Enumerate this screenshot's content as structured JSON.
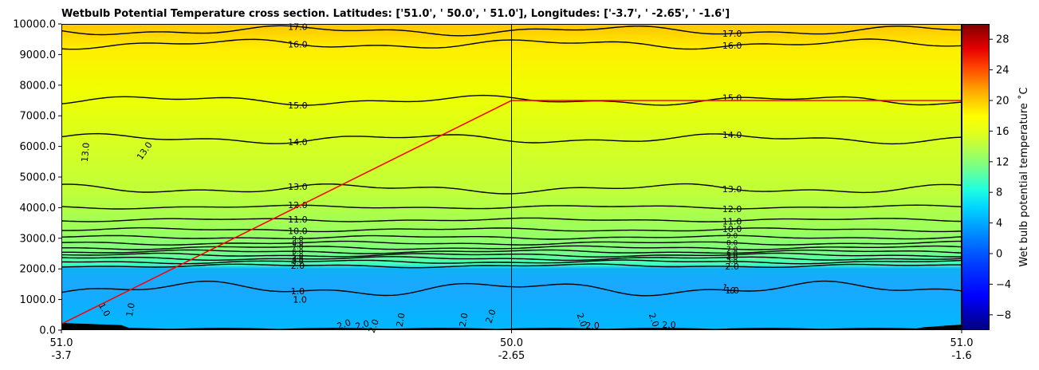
{
  "chart_data": {
    "type": "contour",
    "title": "Wetbulb Potential Temperature cross section. Latitudes: ['51.0', ' 50.0', ' 51.0'], Longitudes: ['-3.7', ' -2.65', ' -1.6']",
    "xlabel": "",
    "ylabel": "",
    "xlim": [
      0,
      2
    ],
    "ylim": [
      0,
      10000
    ],
    "x_ticks": [
      {
        "value": 0,
        "lat": "51.0",
        "lon": "-3.7"
      },
      {
        "value": 1,
        "lat": "50.0",
        "lon": "-2.65"
      },
      {
        "value": 2,
        "lat": "51.0",
        "lon": "-1.6"
      }
    ],
    "y_ticks": [
      {
        "value": 0,
        "label": "0.0"
      },
      {
        "value": 1000,
        "label": "1000.0"
      },
      {
        "value": 2000,
        "label": "2000.0"
      },
      {
        "value": 3000,
        "label": "3000.0"
      },
      {
        "value": 4000,
        "label": "4000.0"
      },
      {
        "value": 5000,
        "label": "5000.0"
      },
      {
        "value": 6000,
        "label": "6000.0"
      },
      {
        "value": 7000,
        "label": "7000.0"
      },
      {
        "value": 8000,
        "label": "8000.0"
      },
      {
        "value": 9000,
        "label": "9000.0"
      },
      {
        "value": 10000,
        "label": "10000.0"
      }
    ],
    "colorbar": {
      "label": "Wet bulb potential temperature $^\\circ$C",
      "label_display": "Wet bulb potential temperature ˚C",
      "range": [
        -10,
        30
      ],
      "ticks": [
        {
          "value": -8,
          "label": "−8"
        },
        {
          "value": -4,
          "label": "−4"
        },
        {
          "value": 0,
          "label": "0"
        },
        {
          "value": 4,
          "label": "4"
        },
        {
          "value": 8,
          "label": "8"
        },
        {
          "value": 12,
          "label": "12"
        },
        {
          "value": 16,
          "label": "16"
        },
        {
          "value": 20,
          "label": "20"
        },
        {
          "value": 24,
          "label": "24"
        },
        {
          "value": 28,
          "label": "28"
        }
      ],
      "colors": [
        "#00007f",
        "#0000ff",
        "#007fff",
        "#00ffff",
        "#7fff7f",
        "#ffff00",
        "#ff7f00",
        "#ff0000",
        "#7f0000"
      ]
    },
    "contours": [
      {
        "value": 17,
        "height": 9780,
        "label": "17.0"
      },
      {
        "value": 16,
        "height": 9340,
        "label": "16.0"
      },
      {
        "value": 15,
        "height": 7500,
        "label": "15.0"
      },
      {
        "value": 14,
        "height": 6250,
        "label": "14.0"
      },
      {
        "value": 13,
        "height": 4620,
        "label": "13.0"
      },
      {
        "value": 12,
        "height": 4020,
        "label": "12.0"
      },
      {
        "value": 11,
        "height": 3600,
        "label": "11.0"
      },
      {
        "value": 10,
        "height": 3280,
        "label": "10.0"
      },
      {
        "value": 9,
        "height": 3030,
        "label": "9.0"
      },
      {
        "value": 8,
        "height": 2840,
        "label": "8.0"
      },
      {
        "value": 7,
        "height": 2690,
        "label": "7.0"
      },
      {
        "value": 6,
        "height": 2560,
        "label": "6.0"
      },
      {
        "value": 5,
        "height": 2450,
        "label": "5.0"
      },
      {
        "value": 4,
        "height": 2340,
        "label": "4.0"
      },
      {
        "value": 3,
        "height": 2230,
        "label": "3.0"
      },
      {
        "value": 2,
        "height": 2100,
        "label": "2.0"
      },
      {
        "value": 1,
        "height": 1350,
        "label": "1.0"
      }
    ],
    "low_contour_labels": [
      {
        "x": 0.09,
        "height": 620,
        "label": "1.0",
        "rotate": 60
      },
      {
        "x": 0.16,
        "height": 650,
        "label": "1.0",
        "rotate": -80
      },
      {
        "x": 0.53,
        "height": 900,
        "label": "1.0",
        "rotate": 0
      },
      {
        "x": 1.48,
        "height": 1250,
        "label": "1.0",
        "rotate": 20
      },
      {
        "x": 0.06,
        "height": 5800,
        "label": "13.0",
        "rotate": -85
      },
      {
        "x": 0.19,
        "height": 5800,
        "label": "13.0",
        "rotate": -55
      },
      {
        "x": 0.63,
        "height": 100,
        "label": "2.0",
        "rotate": -20
      },
      {
        "x": 0.67,
        "height": 80,
        "label": "2.0",
        "rotate": -15
      },
      {
        "x": 0.7,
        "height": 100,
        "label": "2.0",
        "rotate": -70
      },
      {
        "x": 0.76,
        "height": 320,
        "label": "2.0",
        "rotate": -80
      },
      {
        "x": 0.9,
        "height": 320,
        "label": "2.0",
        "rotate": -80
      },
      {
        "x": 0.96,
        "height": 420,
        "label": "2.0",
        "rotate": -70
      },
      {
        "x": 1.15,
        "height": 300,
        "label": "2.0",
        "rotate": 70
      },
      {
        "x": 1.18,
        "height": 50,
        "label": "2.0",
        "rotate": 0
      },
      {
        "x": 1.31,
        "height": 300,
        "label": "2.0",
        "rotate": 70
      },
      {
        "x": 1.35,
        "height": 80,
        "label": "2.0",
        "rotate": 0
      }
    ],
    "flight_path": {
      "color": "#ff0000",
      "points": [
        [
          0,
          200
        ],
        [
          1,
          7500
        ],
        [
          2,
          7500
        ]
      ]
    }
  }
}
